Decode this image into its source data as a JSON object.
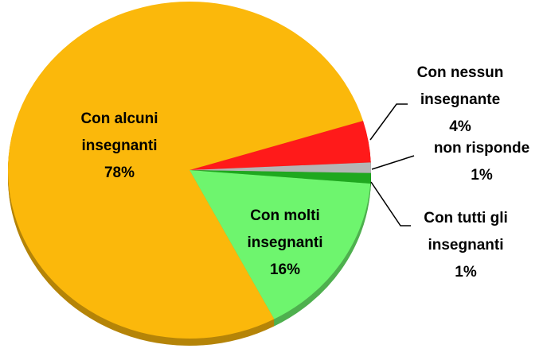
{
  "chart_data": {
    "type": "pie",
    "categories": [
      [
        "Con nessun",
        "insegnante"
      ],
      [
        "non risponde"
      ],
      [
        "Con tutti gli",
        "insegnanti"
      ],
      [
        "Con molti",
        "insegnanti"
      ],
      [
        "Con alcuni",
        "insegnanti"
      ]
    ],
    "values": [
      4,
      1,
      1,
      16,
      78
    ],
    "value_labels": [
      "4%",
      "1%",
      "1%",
      "16%",
      "78%"
    ],
    "colors": [
      "#ff1a1a",
      "#b5b5b5",
      "#1fa81f",
      "#6ef56e",
      "#fbb80b"
    ]
  }
}
